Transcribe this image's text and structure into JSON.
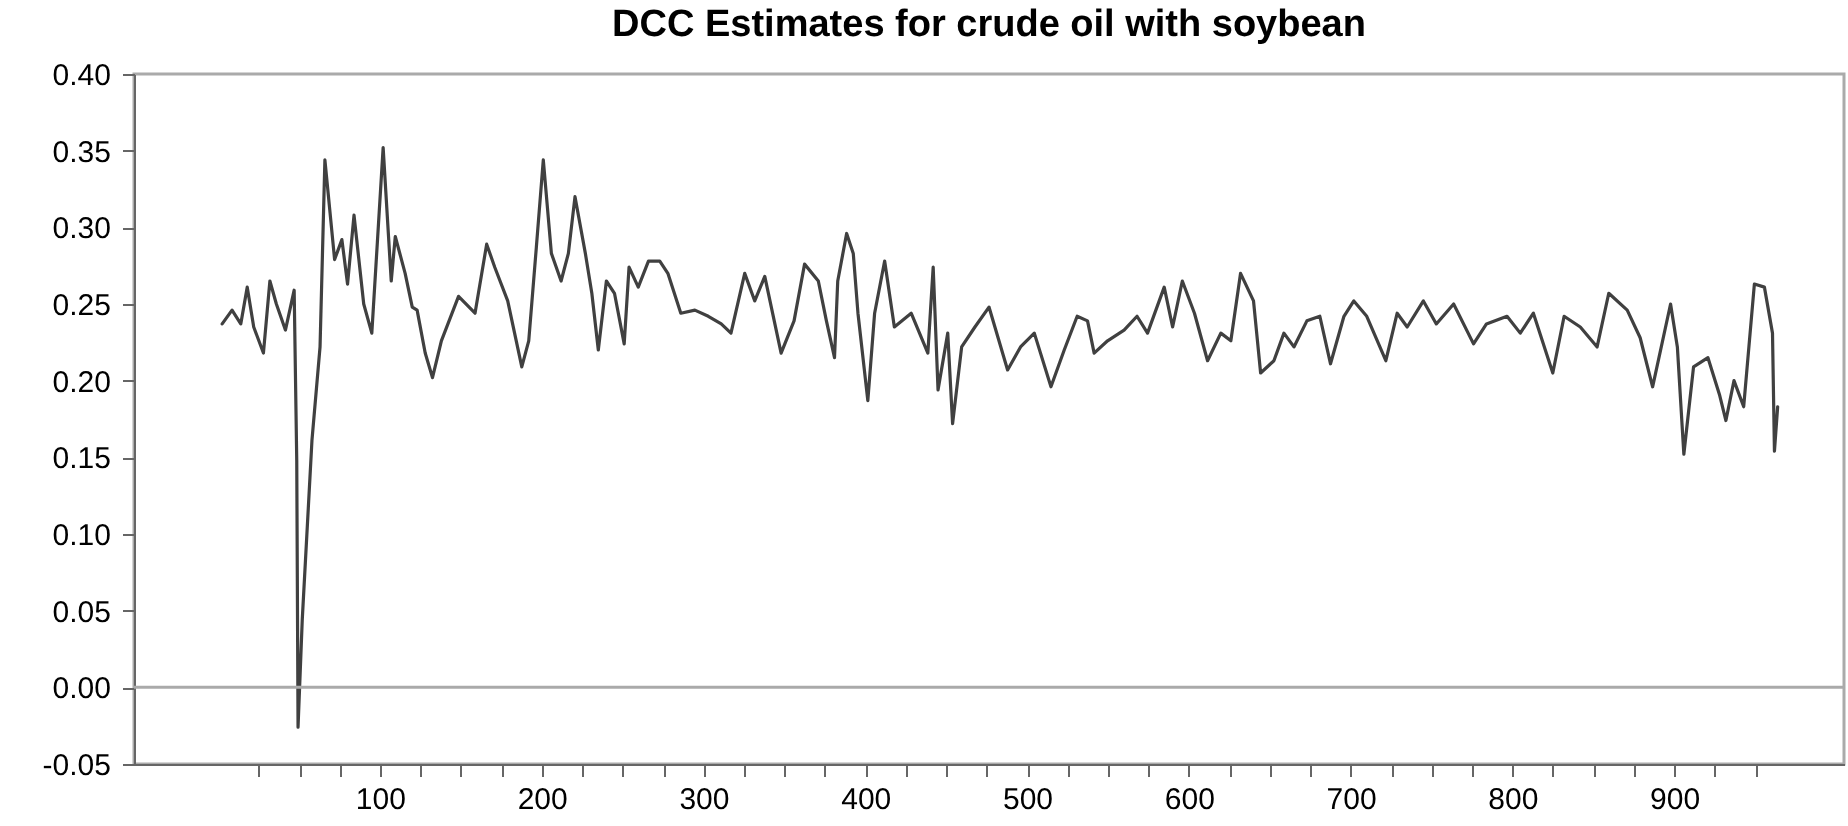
{
  "chart_data": {
    "type": "line",
    "title": "DCC Estimates for crude oil with soybean",
    "xlim": [
      -52,
      1005
    ],
    "xticks": [
      {
        "value": 25,
        "label": null
      },
      {
        "value": 50,
        "label": null
      },
      {
        "value": 75,
        "label": null
      },
      100,
      {
        "value": 125,
        "label": null
      },
      {
        "value": 150,
        "label": null
      },
      {
        "value": 175,
        "label": null
      },
      200,
      {
        "value": 225,
        "label": null
      },
      {
        "value": 250,
        "label": null
      },
      {
        "value": 275,
        "label": null
      },
      300,
      {
        "value": 325,
        "label": null
      },
      {
        "value": 350,
        "label": null
      },
      {
        "value": 375,
        "label": null
      },
      400,
      {
        "value": 425,
        "label": null
      },
      {
        "value": 450,
        "label": null
      },
      {
        "value": 475,
        "label": null
      },
      500,
      {
        "value": 525,
        "label": null
      },
      {
        "value": 550,
        "label": null
      },
      {
        "value": 575,
        "label": null
      },
      600,
      {
        "value": 625,
        "label": null
      },
      {
        "value": 650,
        "label": null
      },
      {
        "value": 675,
        "label": null
      },
      700,
      {
        "value": 725,
        "label": null
      },
      {
        "value": 750,
        "label": null
      },
      {
        "value": 775,
        "label": null
      },
      800,
      {
        "value": 825,
        "label": null
      },
      {
        "value": 850,
        "label": null
      },
      {
        "value": 875,
        "label": null
      },
      900,
      {
        "value": 925,
        "label": null
      },
      {
        "value": 950,
        "label": null
      }
    ],
    "ylim": [
      -0.05,
      0.4
    ],
    "yticks": [
      {
        "value": -0.05,
        "label": "-0.05"
      },
      {
        "value": 0,
        "label": "0.00"
      },
      {
        "value": 0.05,
        "label": "0.05"
      },
      {
        "value": 0.1,
        "label": "0.10"
      },
      {
        "value": 0.15,
        "label": "0.15"
      },
      {
        "value": 0.2,
        "label": "0.20"
      },
      {
        "value": 0.25,
        "label": "0.25"
      },
      {
        "value": 0.3,
        "label": "0.30"
      },
      {
        "value": 0.35,
        "label": "0.35"
      },
      {
        "value": 0.4,
        "label": "0.40"
      }
    ],
    "grid": false,
    "ref_lines": [
      {
        "axis": "y",
        "value": 0,
        "color": "#aaaaaa"
      }
    ],
    "series": [
      {
        "color": "#404040",
        "x": [
          2.5,
          8.6,
          14,
          18,
          22,
          28,
          32,
          36,
          41.6,
          47,
          48.6,
          49.4,
          52,
          58,
          63,
          66,
          72,
          76.5,
          80,
          84,
          90,
          95,
          102,
          107,
          109.5,
          115.6,
          120,
          123,
          128,
          132.5,
          138,
          148.6,
          158.8,
          166,
          171,
          179,
          187.7,
          192,
          196.7,
          201,
          206,
          212,
          216.5,
          220.6,
          227,
          231,
          235,
          240,
          245,
          251,
          254,
          259.7,
          266,
          273,
          278,
          286,
          294.7,
          303,
          311,
          317,
          325.5,
          331.7,
          337.9,
          348,
          356,
          362.5,
          371,
          376,
          381,
          383,
          388.5,
          392.6,
          395.5,
          401.6,
          405.8,
          412,
          418,
          428.4,
          438.7,
          442,
          445,
          451,
          454,
          459.6,
          467.8,
          476.5,
          488,
          496,
          504.5,
          514.8,
          523,
          531,
          537.4,
          541.5,
          549.8,
          560,
          568,
          574.5,
          584.8,
          590,
          596,
          603.5,
          611.6,
          619.8,
          626,
          632,
          640,
          644.4,
          652.6,
          658.8,
          665,
          673,
          681,
          687.6,
          695.9,
          702,
          710,
          721.8,
          728.8,
          735,
          745,
          753,
          763.7,
          776,
          784,
          796.7,
          804.9,
          813,
          825,
          832,
          842,
          852.4,
          859.6,
          871,
          879,
          886.7,
          897.8,
          902,
          906,
          912,
          920.9,
          928,
          932,
          937,
          943,
          949.6,
          955.8,
          960.8,
          962,
          964
        ],
        "values": [
          0.237,
          0.246,
          0.237,
          0.261,
          0.235,
          0.218,
          0.265,
          0.25,
          0.233,
          0.259,
          0.148,
          -0.026,
          0.044,
          0.161,
          0.222,
          0.344,
          0.279,
          0.292,
          0.263,
          0.308,
          0.25,
          0.231,
          0.352,
          0.265,
          0.294,
          0.27,
          0.248,
          0.246,
          0.218,
          0.202,
          0.226,
          0.255,
          0.244,
          0.289,
          0.274,
          0.252,
          0.209,
          0.226,
          0.287,
          0.344,
          0.283,
          0.265,
          0.283,
          0.32,
          0.283,
          0.257,
          0.22,
          0.265,
          0.257,
          0.224,
          0.274,
          0.261,
          0.278,
          0.278,
          0.27,
          0.244,
          0.246,
          0.242,
          0.237,
          0.231,
          0.27,
          0.252,
          0.268,
          0.218,
          0.239,
          0.276,
          0.265,
          0.239,
          0.215,
          0.265,
          0.296,
          0.283,
          0.244,
          0.187,
          0.244,
          0.278,
          0.235,
          0.244,
          0.218,
          0.274,
          0.194,
          0.231,
          0.172,
          0.222,
          0.235,
          0.248,
          0.207,
          0.222,
          0.231,
          0.196,
          0.22,
          0.242,
          0.239,
          0.218,
          0.226,
          0.233,
          0.242,
          0.231,
          0.261,
          0.235,
          0.265,
          0.244,
          0.213,
          0.231,
          0.226,
          0.27,
          0.252,
          0.205,
          0.213,
          0.231,
          0.222,
          0.239,
          0.242,
          0.211,
          0.242,
          0.252,
          0.242,
          0.213,
          0.244,
          0.235,
          0.252,
          0.237,
          0.25,
          0.224,
          0.237,
          0.242,
          0.231,
          0.244,
          0.205,
          0.242,
          0.235,
          0.222,
          0.257,
          0.246,
          0.228,
          0.196,
          0.25,
          0.222,
          0.152,
          0.209,
          0.215,
          0.191,
          0.174,
          0.2,
          0.183,
          0.263,
          0.261,
          0.231,
          0.154,
          0.183
        ]
      }
    ]
  }
}
